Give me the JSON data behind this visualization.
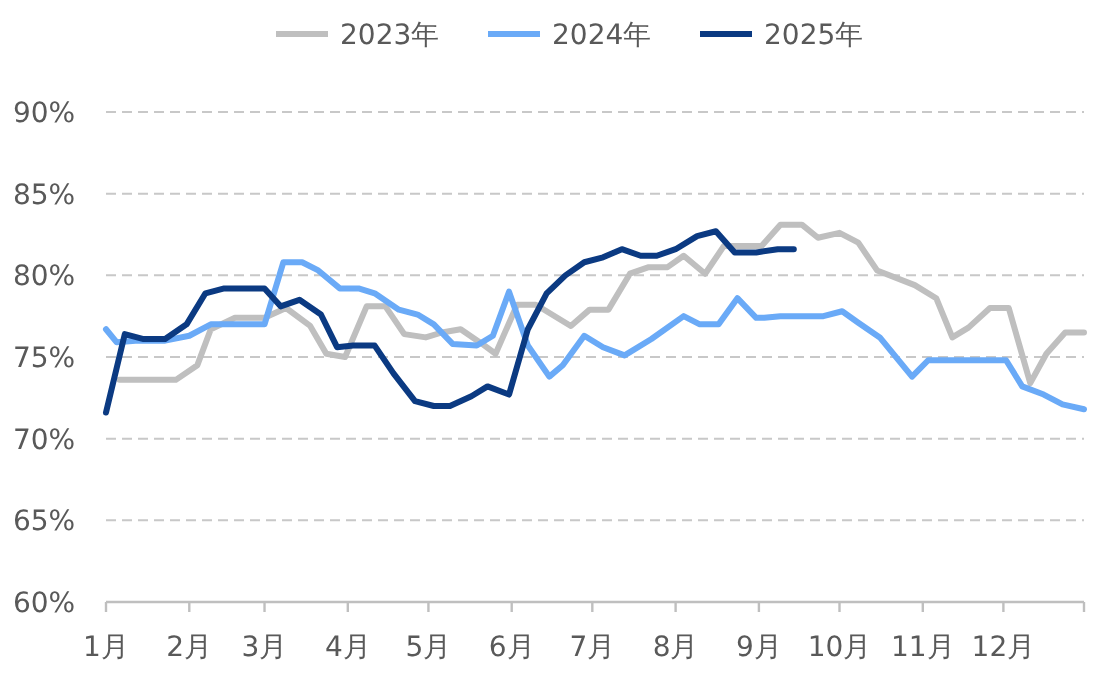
{
  "chart_data": {
    "type": "line",
    "xlim": [
      "--01-01",
      "--12-31"
    ],
    "ylim": [
      60,
      90
    ],
    "xticks": [
      {
        "value": "--01-01",
        "label": "1月"
      },
      {
        "value": "--02-01",
        "label": "2月"
      },
      {
        "value": "--03-01",
        "label": "3月"
      },
      {
        "value": "--04-01",
        "label": "4月"
      },
      {
        "value": "--05-01",
        "label": "5月"
      },
      {
        "value": "--06-01",
        "label": "6月"
      },
      {
        "value": "--07-01",
        "label": "7月"
      },
      {
        "value": "--08-01",
        "label": "8月"
      },
      {
        "value": "--09-01",
        "label": "9月"
      },
      {
        "value": "--10-01",
        "label": "10月"
      },
      {
        "value": "--11-01",
        "label": "11月"
      },
      {
        "value": "--12-01",
        "label": "12月"
      },
      {
        "value": "--12-31",
        "label": null
      }
    ],
    "yticks": [
      {
        "value": 60,
        "label": "60%"
      },
      {
        "value": 65,
        "label": "65%"
      },
      {
        "value": 70,
        "label": "70%"
      },
      {
        "value": 75,
        "label": "75%"
      },
      {
        "value": 80,
        "label": "80%"
      },
      {
        "value": 85,
        "label": "85%"
      },
      {
        "value": 90,
        "label": "90%"
      }
    ],
    "grid": "y",
    "legend": "top",
    "series": [
      {
        "name": "2023年",
        "color": "#bfbfbf",
        "x": [
          "--01-06",
          "--01-27",
          "--02-04",
          "--02-09",
          "--02-18",
          "--03-01",
          "--03-09",
          "--03-18",
          "--03-24",
          "--03-31",
          "--04-08",
          "--04-15",
          "--04-22",
          "--04-30",
          "--05-06",
          "--05-13",
          "--05-21",
          "--05-26",
          "--06-03",
          "--06-10",
          "--06-23",
          "--06-30",
          "--07-07",
          "--07-15",
          "--07-22",
          "--07-29",
          "--08-04",
          "--08-12",
          "--08-19",
          "--09-02",
          "--09-09",
          "--09-17",
          "--09-23",
          "--10-01",
          "--10-08",
          "--10-15",
          "--10-29",
          "--11-06",
          "--11-12",
          "--11-18",
          "--11-26",
          "--12-03",
          "--12-11",
          "--12-17",
          "--12-24",
          "--12-31"
        ],
        "values": [
          73.6,
          73.6,
          74.5,
          76.7,
          77.4,
          77.4,
          78.0,
          76.9,
          75.2,
          75.0,
          78.1,
          78.1,
          76.4,
          76.2,
          76.5,
          76.7,
          75.8,
          75.2,
          78.2,
          78.2,
          76.9,
          77.9,
          77.9,
          80.1,
          80.5,
          80.5,
          81.2,
          80.1,
          81.8,
          81.8,
          83.1,
          83.1,
          82.3,
          82.6,
          82.0,
          80.3,
          79.4,
          78.6,
          76.2,
          76.8,
          78.0,
          78.0,
          73.4,
          75.2,
          76.5,
          76.5
        ]
      },
      {
        "name": "2024年",
        "color": "#6aaaf7",
        "x": [
          "--01-01",
          "--01-05",
          "--01-12",
          "--01-23",
          "--02-01",
          "--02-09",
          "--03-01",
          "--03-08",
          "--03-15",
          "--03-21",
          "--03-29",
          "--04-05",
          "--04-11",
          "--04-20",
          "--04-27",
          "--05-03",
          "--05-10",
          "--05-19",
          "--05-25",
          "--05-31",
          "--06-07",
          "--06-15",
          "--06-20",
          "--06-28",
          "--07-05",
          "--07-13",
          "--07-23",
          "--08-04",
          "--08-10",
          "--08-17",
          "--08-24",
          "--08-31",
          "--09-03",
          "--09-09",
          "--09-17",
          "--09-25",
          "--10-02",
          "--10-08",
          "--10-16",
          "--10-28",
          "--11-03",
          "--11-11",
          "--12-02",
          "--12-08",
          "--12-16",
          "--12-23",
          "--12-31"
        ],
        "values": [
          76.7,
          75.9,
          76.0,
          76.0,
          76.3,
          77.0,
          77.0,
          80.8,
          80.8,
          80.3,
          79.2,
          79.2,
          78.9,
          77.9,
          77.6,
          77.0,
          75.8,
          75.7,
          76.3,
          79.0,
          75.7,
          73.8,
          74.5,
          76.3,
          75.6,
          75.1,
          76.1,
          77.5,
          77.0,
          77.0,
          78.6,
          77.4,
          77.4,
          77.5,
          77.5,
          77.5,
          77.8,
          77.1,
          76.2,
          73.8,
          74.8,
          74.8,
          74.8,
          73.2,
          72.7,
          72.1,
          71.8
        ]
      },
      {
        "name": "2025年",
        "color": "#0b3a82",
        "x": [
          "--01-01",
          "--01-08",
          "--01-15",
          "--01-23",
          "--01-31",
          "--02-07",
          "--02-14",
          "--03-01",
          "--03-07",
          "--03-14",
          "--03-22",
          "--03-28",
          "--04-03",
          "--04-11",
          "--04-18",
          "--04-26",
          "--05-03",
          "--05-09",
          "--05-17",
          "--05-23",
          "--05-31",
          "--06-07",
          "--06-14",
          "--06-21",
          "--06-28",
          "--07-05",
          "--07-12",
          "--07-19",
          "--07-25",
          "--08-01",
          "--08-09",
          "--08-16",
          "--08-23",
          "--08-31",
          "--09-08",
          "--09-14"
        ],
        "values": [
          71.6,
          76.4,
          76.1,
          76.1,
          77.0,
          78.9,
          79.2,
          79.2,
          78.1,
          78.5,
          77.6,
          75.6,
          75.7,
          75.7,
          74.0,
          72.3,
          72.0,
          72.0,
          72.6,
          73.2,
          72.7,
          76.7,
          78.9,
          80.0,
          80.8,
          81.1,
          81.6,
          81.2,
          81.2,
          81.6,
          82.4,
          82.7,
          81.4,
          81.4,
          81.6,
          81.6
        ]
      }
    ]
  }
}
